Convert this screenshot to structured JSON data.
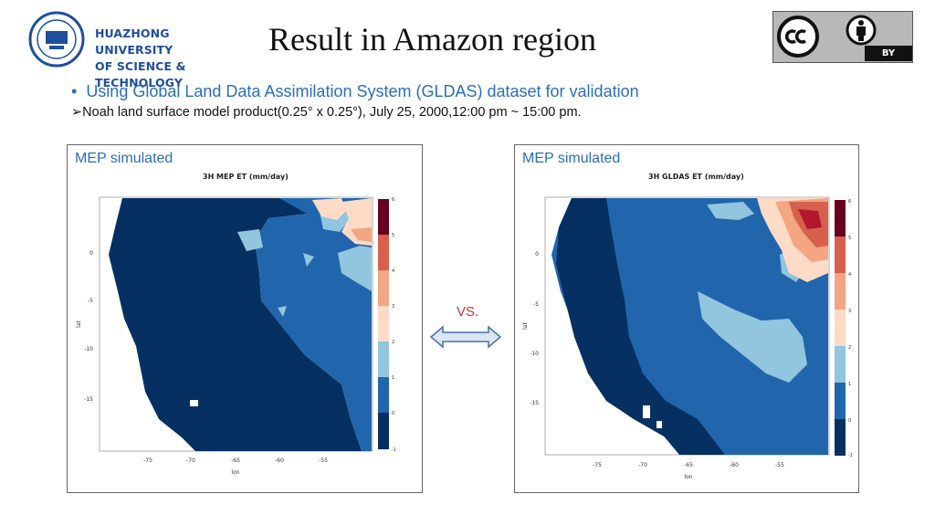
{
  "header": {
    "university_line1": "HUAZHONG UNIVERSITY",
    "university_line2": "OF SCIENCE & TECHNOLOGY",
    "title": "Result in Amazon region",
    "license_label": "BY"
  },
  "content": {
    "bullet": "Using Global Land Data Assimilation System (GLDAS) dataset for validation",
    "sub_bullet": "Noah land surface model product(0.25° x 0.25°), July 25, 2000,12:00 pm ~ 15:00 pm."
  },
  "panels": [
    {
      "label": "MEP simulated",
      "map_title": "3H MEP ET (mm/day)"
    },
    {
      "label": "MEP simulated",
      "map_title": "3H GLDAS ET (mm/day)"
    }
  ],
  "vs_label": "VS.",
  "axes": {
    "x_ticks": [
      "-75",
      "-70",
      "-65",
      "-60",
      "-55"
    ],
    "y_ticks": [
      "0",
      "-5",
      "-10",
      "-15"
    ],
    "xlabel": "lon",
    "ylabel": "lat",
    "colorbar_ticks": [
      "6",
      "5",
      "4",
      "3",
      "2",
      "1",
      "0",
      "-1"
    ]
  },
  "colors": {
    "accent": "#2a6ebb",
    "vs": "#c0392b",
    "colorbar": [
      "#67001f",
      "#b2182b",
      "#d6604d",
      "#f4a582",
      "#fddbc7",
      "#92c5de",
      "#2166ac",
      "#053061"
    ]
  }
}
